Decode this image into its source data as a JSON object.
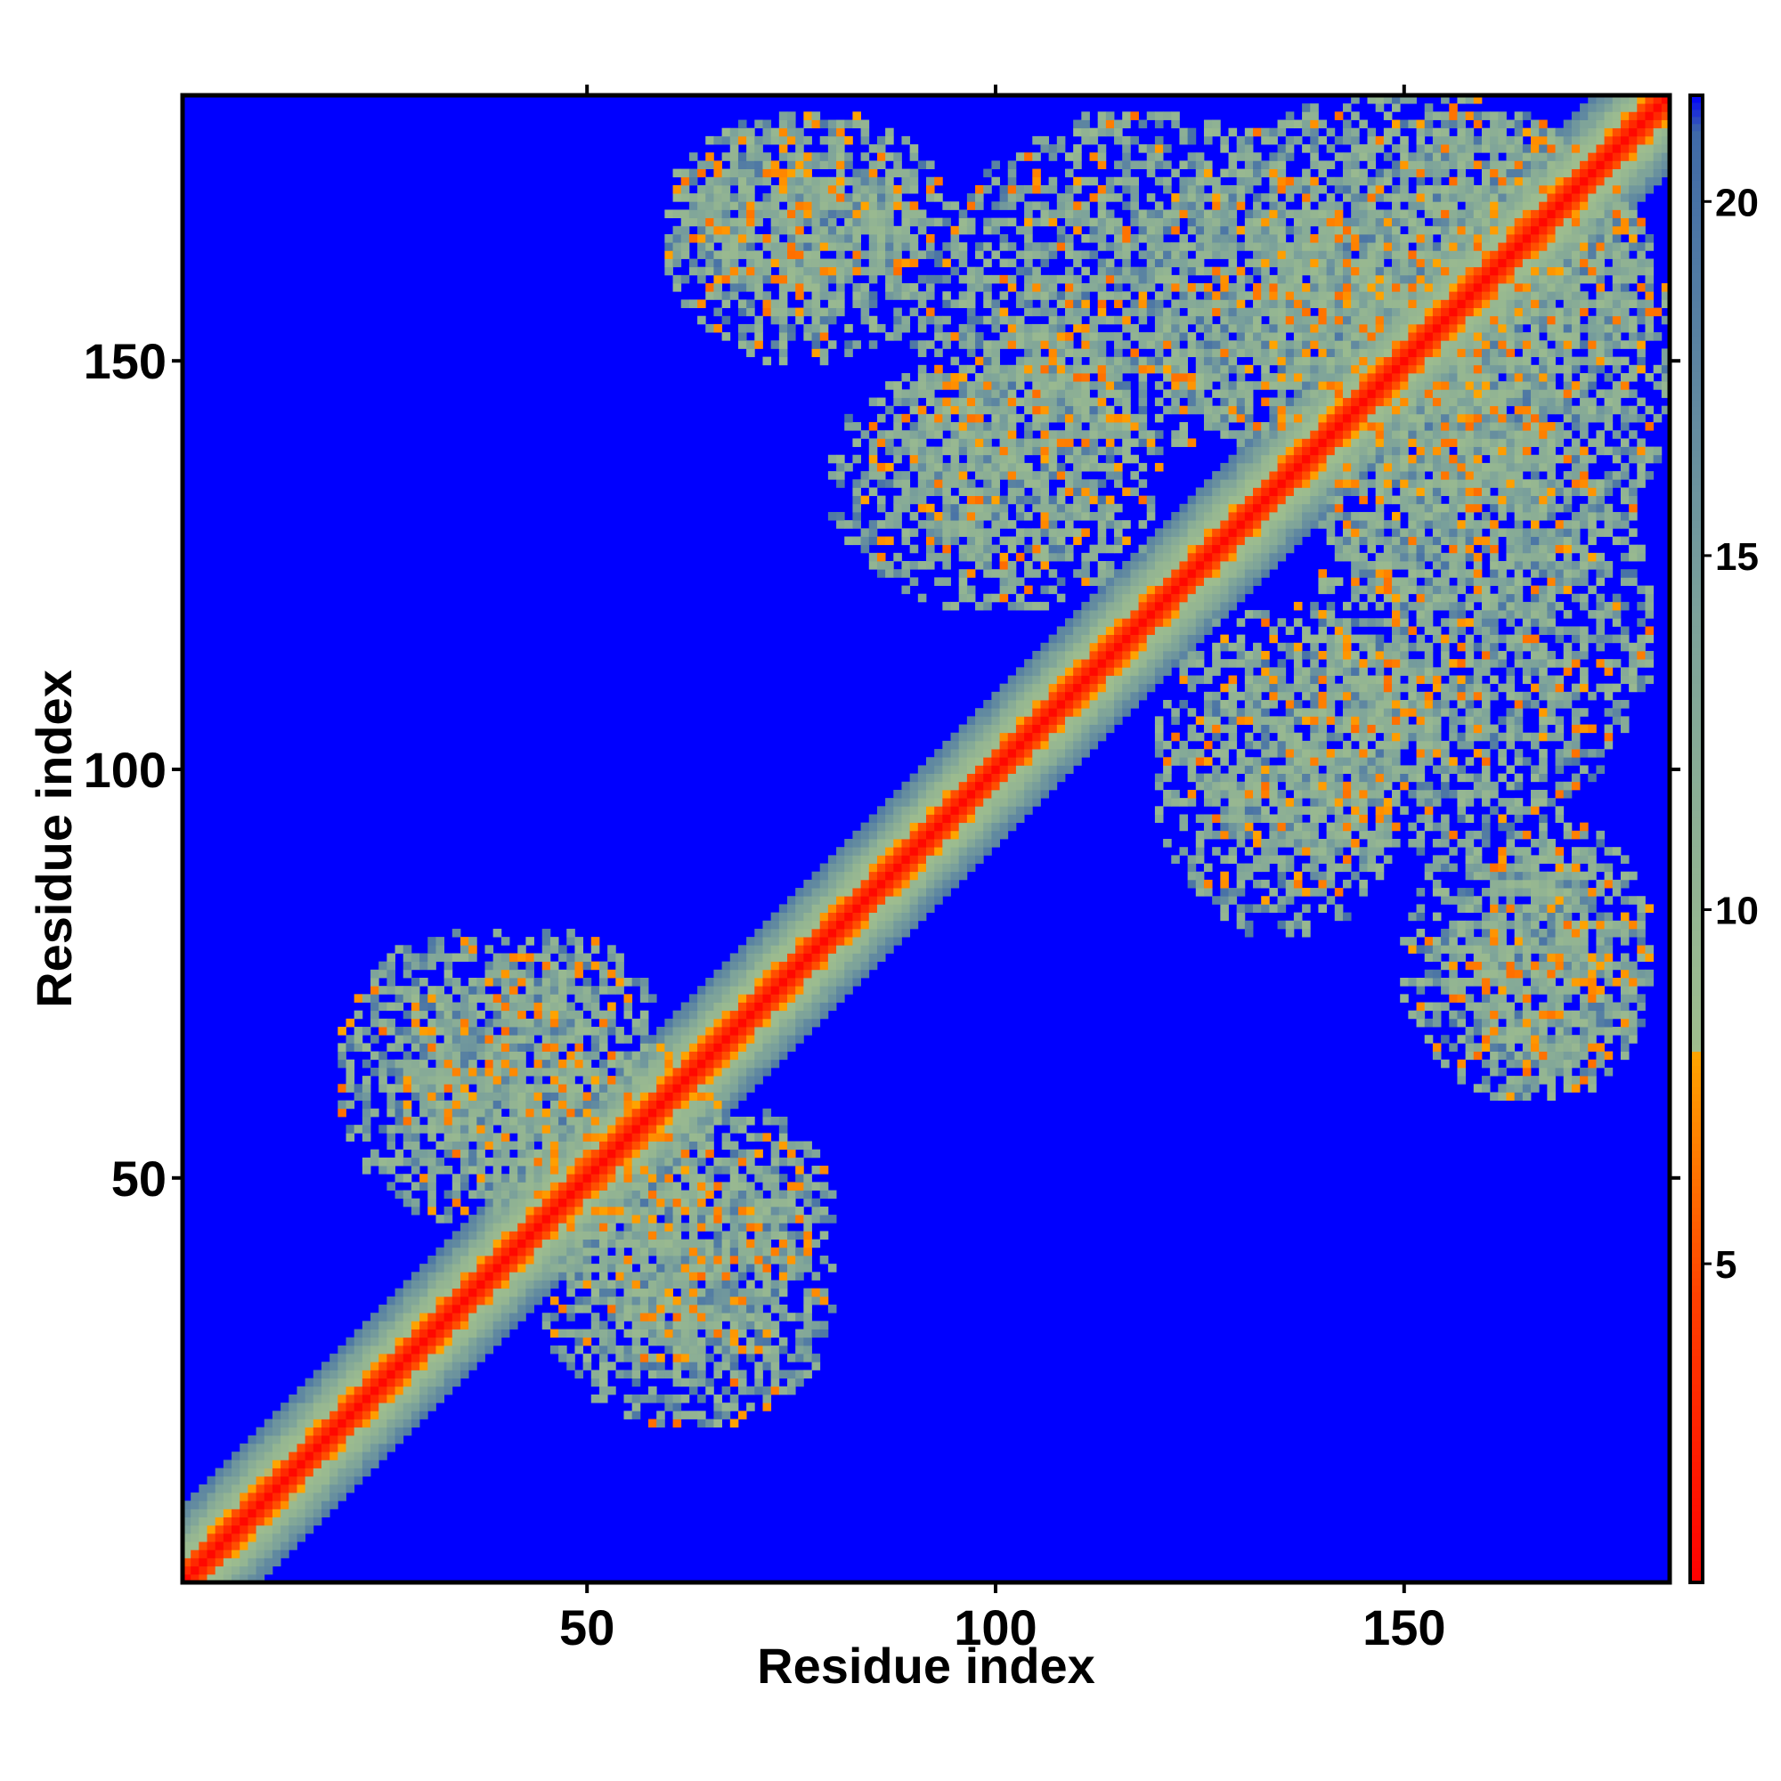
{
  "chart_data": {
    "type": "heatmap",
    "title": "",
    "xlabel": "Residue index",
    "ylabel": "Residue index",
    "x_range": [
      1,
      182
    ],
    "y_range": [
      1,
      182
    ],
    "x_ticks": [
      50,
      100,
      150
    ],
    "y_ticks": [
      50,
      100,
      150
    ],
    "colorbar": {
      "range": [
        0.5,
        21.5
      ],
      "ticks": [
        5,
        10,
        15,
        20
      ],
      "stops": [
        {
          "value": 0.5,
          "color": "#ff0000"
        },
        {
          "value": 4.5,
          "color": "#ff4000"
        },
        {
          "value": 8.0,
          "color": "#ffa500"
        },
        {
          "value": 8.01,
          "color": "#9fbe8e"
        },
        {
          "value": 14.0,
          "color": "#7da39a"
        },
        {
          "value": 21.0,
          "color": "#3f6aa8"
        },
        {
          "value": 21.5,
          "color": "#0000ff"
        }
      ]
    },
    "background_value": 21.5,
    "symmetric": true,
    "diagonal_contact": {
      "core_halfwidth": 2,
      "band_halfwidth": 5,
      "fade_halfwidth": 9
    },
    "contact_regions_upper_triangle": [
      {
        "x_range": [
          20,
          50
        ],
        "y_range": [
          45,
          80
        ],
        "density": 0.72
      },
      {
        "x_range": [
          45,
          80
        ],
        "y_range": [
          30,
          60
        ],
        "density": 0.7
      },
      {
        "x_range": [
          60,
          90
        ],
        "y_range": [
          155,
          180
        ],
        "density": 0.6
      },
      {
        "x_range": [
          88,
          115
        ],
        "y_range": [
          125,
          160
        ],
        "density": 0.65
      },
      {
        "x_range": [
          120,
          180
        ],
        "y_range": [
          135,
          182
        ],
        "density": 0.7
      },
      {
        "x_range": [
          140,
          180
        ],
        "y_range": [
          95,
          140
        ],
        "density": 0.6
      },
      {
        "x_range": [
          120,
          150
        ],
        "y_range": [
          80,
          120
        ],
        "density": 0.6
      },
      {
        "x_range": [
          150,
          180
        ],
        "y_range": [
          60,
          95
        ],
        "density": 0.6
      }
    ]
  }
}
